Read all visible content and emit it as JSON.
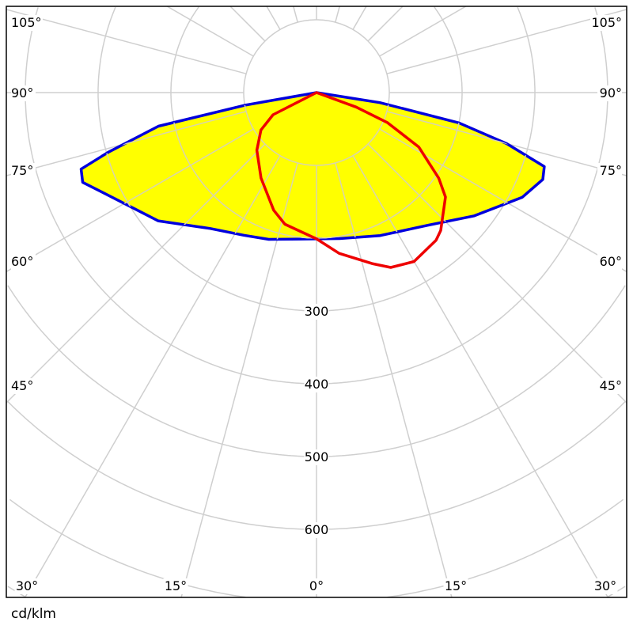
{
  "chart_data": {
    "type": "polar",
    "unit_label": "cd/klm",
    "radial_ticks": [
      300,
      400,
      500,
      600
    ],
    "radial_grid_step": 100,
    "angle_grid_step_deg": 15,
    "angle_tick_labels_side": [
      "105°",
      "90°",
      "75°",
      "60°",
      "45°"
    ],
    "angle_tick_labels_side_values": [
      105,
      90,
      75,
      60,
      45
    ],
    "angle_tick_labels_bottom": [
      "30°",
      "15°",
      "0°",
      "15°",
      "30°"
    ],
    "angle_tick_labels_bottom_values": [
      -30,
      -15,
      0,
      15,
      30
    ],
    "grid": true,
    "series": [
      {
        "color": "#0000dd",
        "fill": "#ffff00",
        "points": [
          [
            -90,
            0
          ],
          [
            -80,
            99
          ],
          [
            -78,
            222
          ],
          [
            -74,
            298
          ],
          [
            -72,
            340
          ],
          [
            -69,
            344
          ],
          [
            -62,
            312
          ],
          [
            -51,
            280
          ],
          [
            -38,
            237
          ],
          [
            -27,
            220
          ],
          [
            -18,
            212
          ],
          [
            0,
            201
          ],
          [
            9,
            203
          ],
          [
            24,
            215
          ],
          [
            40,
            238
          ],
          [
            52,
            275
          ],
          [
            63,
            317
          ],
          [
            69,
            333
          ],
          [
            72,
            329
          ],
          [
            75,
            270
          ],
          [
            78,
            200
          ],
          [
            81,
            88
          ],
          [
            90,
            0
          ]
        ]
      },
      {
        "color": "#ee0000",
        "fill": "none",
        "points": [
          [
            -90,
            0
          ],
          [
            -63,
            67
          ],
          [
            -56,
            92
          ],
          [
            -46,
            114
          ],
          [
            -33,
            140
          ],
          [
            -20,
            172
          ],
          [
            -13.5,
            186
          ],
          [
            0,
            201
          ],
          [
            8,
            223
          ],
          [
            18,
            247
          ],
          [
            23,
            261
          ],
          [
            30,
            268
          ],
          [
            39,
            261
          ],
          [
            42,
            255
          ],
          [
            51,
            228
          ],
          [
            55,
            205
          ],
          [
            62,
            159
          ],
          [
            67,
            106
          ],
          [
            70,
            58
          ],
          [
            90,
            0
          ]
        ]
      }
    ]
  }
}
